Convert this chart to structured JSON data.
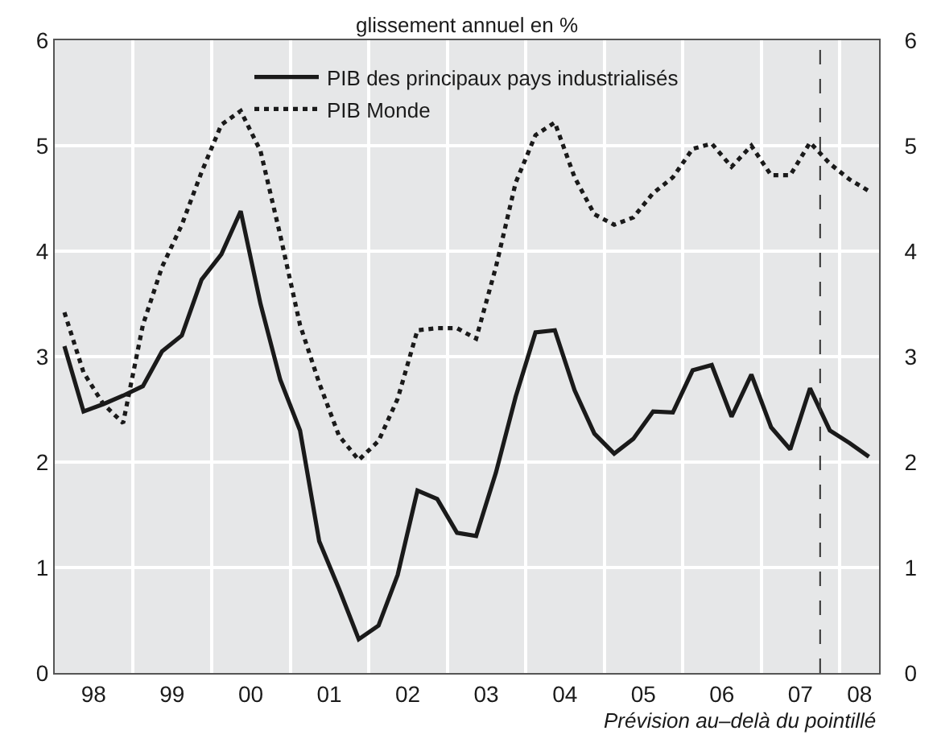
{
  "chart_data": {
    "type": "line",
    "subtitle": "glissement annuel en %",
    "x": [
      "1998-02-15",
      "1998-05-15",
      "1998-08-15",
      "1998-11-15",
      "1999-02-15",
      "1999-05-15",
      "1999-08-15",
      "1999-11-15",
      "2000-02-15",
      "2000-05-15",
      "2000-08-15",
      "2000-11-15",
      "2001-02-15",
      "2001-05-15",
      "2001-08-15",
      "2001-11-15",
      "2002-02-15",
      "2002-05-15",
      "2002-08-15",
      "2002-11-15",
      "2003-02-15",
      "2003-05-15",
      "2003-08-15",
      "2003-11-15",
      "2004-02-15",
      "2004-05-15",
      "2004-08-15",
      "2004-11-15",
      "2005-02-15",
      "2005-05-15",
      "2005-08-15",
      "2005-11-15",
      "2006-02-15",
      "2006-05-15",
      "2006-08-15",
      "2006-11-15",
      "2007-02-15",
      "2007-05-15",
      "2007-08-15",
      "2007-11-15",
      "2008-02-15",
      "2008-05-15"
    ],
    "series": [
      {
        "name": "PIB des principaux pays industrialisés",
        "color": "#1a1a1a",
        "line_style": "solid",
        "values": [
          3.1,
          2.48,
          2.55,
          2.63,
          2.72,
          3.05,
          3.2,
          3.73,
          3.97,
          4.38,
          3.5,
          2.78,
          2.3,
          1.25,
          0.8,
          0.32,
          0.45,
          0.93,
          1.73,
          1.65,
          1.33,
          1.3,
          1.9,
          2.62,
          3.23,
          3.25,
          2.68,
          2.27,
          2.08,
          2.22,
          2.48,
          2.47,
          2.87,
          2.92,
          2.43,
          2.83,
          2.33,
          2.12,
          2.7,
          2.3,
          2.18,
          2.05
        ]
      },
      {
        "name": "PIB Monde",
        "color": "#1a1a1a",
        "line_style": "dotted",
        "values": [
          3.42,
          2.85,
          2.55,
          2.37,
          3.3,
          3.85,
          4.25,
          4.75,
          5.2,
          5.33,
          4.95,
          4.15,
          3.3,
          2.75,
          2.25,
          2.02,
          2.2,
          2.6,
          3.25,
          3.27,
          3.27,
          3.17,
          3.85,
          4.65,
          5.1,
          5.22,
          4.7,
          4.35,
          4.25,
          4.32,
          4.55,
          4.7,
          4.97,
          5.02,
          4.8,
          5.0,
          4.72,
          4.72,
          5.03,
          4.83,
          4.68,
          4.57
        ]
      }
    ],
    "xlim": [
      "1998-01-01",
      "2008-07-01"
    ],
    "xticks": [
      {
        "value": "1998-07-01",
        "label": "98"
      },
      {
        "value": "1999-07-01",
        "label": "99"
      },
      {
        "value": "2000-07-01",
        "label": "00"
      },
      {
        "value": "2001-07-01",
        "label": "01"
      },
      {
        "value": "2002-07-01",
        "label": "02"
      },
      {
        "value": "2003-07-01",
        "label": "03"
      },
      {
        "value": "2004-07-01",
        "label": "04"
      },
      {
        "value": "2005-07-01",
        "label": "05"
      },
      {
        "value": "2006-07-01",
        "label": "06"
      },
      {
        "value": "2007-07-01",
        "label": "07"
      },
      {
        "value": "2008-04-01",
        "label": "08"
      },
      {
        "value": "1999-01-01",
        "label": null
      },
      {
        "value": "2000-01-01",
        "label": null
      },
      {
        "value": "2001-01-01",
        "label": null
      },
      {
        "value": "2002-01-01",
        "label": null
      },
      {
        "value": "2003-01-01",
        "label": null
      },
      {
        "value": "2004-01-01",
        "label": null
      },
      {
        "value": "2005-01-01",
        "label": null
      },
      {
        "value": "2006-01-01",
        "label": null
      },
      {
        "value": "2007-01-01",
        "label": null
      },
      {
        "value": "2008-01-01",
        "label": null
      }
    ],
    "ylim": [
      0,
      6
    ],
    "yticks": [
      0,
      1,
      2,
      3,
      4,
      5,
      6
    ],
    "y2lim": [
      0,
      6
    ],
    "y2ticks": [
      0,
      1,
      2,
      3,
      4,
      5,
      6
    ],
    "ref_lines": [
      {
        "axis": "x",
        "value": "2007-10-01",
        "line_style": "dashed",
        "color": "#333333"
      }
    ],
    "annotations": [
      "Prévision au–delà du pointillé"
    ],
    "grid": true,
    "legend": "top",
    "marker": "none"
  }
}
